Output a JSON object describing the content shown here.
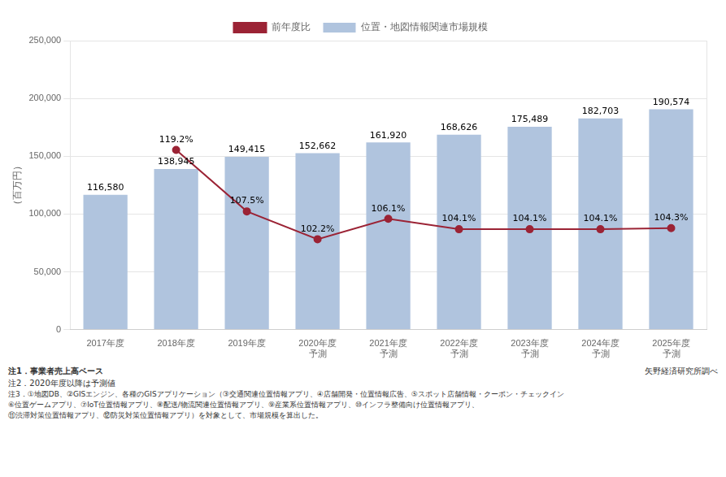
{
  "chart_data": {
    "type": "bar",
    "categories": [
      "2017年度",
      "2018年度",
      "2019年度",
      "2020年度\n予測",
      "2021年度\n予測",
      "2022年度\n予測",
      "2023年度\n予測",
      "2024年度\n予測",
      "2025年度\n予測"
    ],
    "series": [
      {
        "name": "位置・地図情報関連市場規模",
        "type": "bar",
        "color": "#b0c4de",
        "values": [
          116580,
          138945,
          149415,
          152662,
          161920,
          168626,
          175489,
          182703,
          190574
        ],
        "value_labels": [
          "116,580",
          "138,945",
          "149,415",
          "152,662",
          "161,920",
          "168,626",
          "175,489",
          "182,703",
          "190,574"
        ]
      },
      {
        "name": "前年度比",
        "type": "line",
        "color": "#9b2335",
        "marker": "circle",
        "axis": "y2",
        "values": [
          null,
          119.2,
          107.5,
          102.2,
          106.1,
          104.1,
          104.1,
          104.1,
          104.3
        ],
        "value_labels": [
          null,
          "119.2%",
          "107.5%",
          "102.2%",
          "106.1%",
          "104.1%",
          "104.1%",
          "104.1%",
          "104.3%"
        ]
      }
    ],
    "ylabel": "（百万円）",
    "ylim": [
      0,
      250000
    ],
    "yticks": [
      0,
      {
        "value": 50000,
        "label": "50,000"
      },
      {
        "value": 100000,
        "label": "100,000"
      },
      {
        "value": 150000,
        "label": "150,000"
      },
      {
        "value": 200000,
        "label": "200,000"
      },
      {
        "value": 250000,
        "label": "250,000"
      }
    ],
    "y2lim": [
      85,
      140
    ],
    "y2ticks": [],
    "grid": true,
    "legend": "top",
    "data_labels": true,
    "notes": [
      "注1．事業者売上高ベース",
      "注2．2020年度以降は予測値",
      "注3．①地図DB、②GISエンジン、各種のGISアプリケーション（③交通関連位置情報アプリ、④店舗開発・位置情報広告、⑤スポット店舗情報・クーポン・チェックイン\n⑥位置ゲームアプリ、⑦IoT位置情報アプリ、⑧配送/物流関連位置情報アプリ、⑨産業系位置情報アプリ、⑩インフラ整備向け位置情報アプリ、\n⑪渋滞対策位置情報アプリ、⑫防災対策位置情報アプリ）を対象として、市場規模を算出した。"
    ],
    "source": "矢野経済研究所調べ"
  }
}
